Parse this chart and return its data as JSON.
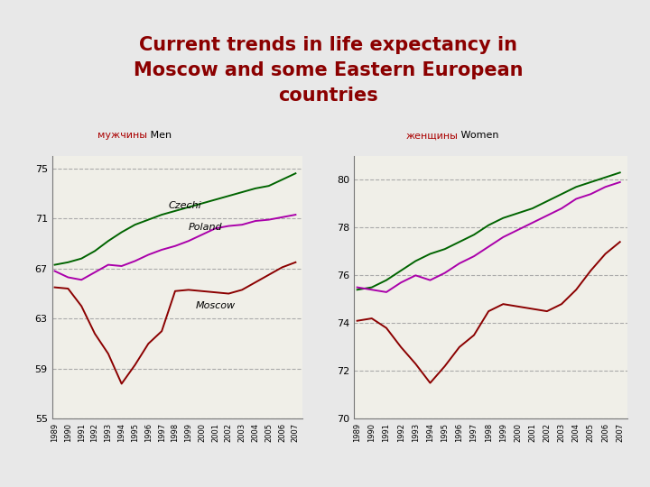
{
  "title_line1": "Current trends in life expectancy in",
  "title_line2": "Moscow and some Eastern European",
  "title_line3": "countries",
  "title_color": "#8B0000",
  "background_color": "#E8E8E8",
  "left_label_ru": "мужчины",
  "left_label_en": " Men",
  "right_label_ru": "женщины",
  "right_label_en": " Women",
  "years": [
    1989,
    1990,
    1991,
    1992,
    1993,
    1994,
    1995,
    1996,
    1997,
    1998,
    1999,
    2000,
    2001,
    2002,
    2003,
    2004,
    2005,
    2006,
    2007
  ],
  "men_czechi": [
    67.3,
    67.5,
    67.8,
    68.4,
    69.2,
    69.9,
    70.5,
    70.9,
    71.3,
    71.6,
    71.9,
    72.2,
    72.5,
    72.8,
    73.1,
    73.4,
    73.6,
    74.1,
    74.6
  ],
  "men_poland": [
    66.8,
    66.3,
    66.1,
    66.7,
    67.3,
    67.2,
    67.6,
    68.1,
    68.5,
    68.8,
    69.2,
    69.7,
    70.2,
    70.4,
    70.5,
    70.8,
    70.9,
    71.1,
    71.3
  ],
  "men_moscow": [
    65.5,
    65.4,
    64.0,
    61.8,
    60.2,
    57.8,
    59.3,
    61.0,
    62.0,
    65.2,
    65.3,
    65.2,
    65.1,
    65.0,
    65.3,
    65.9,
    66.5,
    67.1,
    67.5
  ],
  "women_czechi": [
    75.4,
    75.5,
    75.8,
    76.2,
    76.6,
    76.9,
    77.1,
    77.4,
    77.7,
    78.1,
    78.4,
    78.6,
    78.8,
    79.1,
    79.4,
    79.7,
    79.9,
    80.1,
    80.3
  ],
  "women_poland": [
    75.5,
    75.4,
    75.3,
    75.7,
    76.0,
    75.8,
    76.1,
    76.5,
    76.8,
    77.2,
    77.6,
    77.9,
    78.2,
    78.5,
    78.8,
    79.2,
    79.4,
    79.7,
    79.9
  ],
  "women_moscow": [
    74.1,
    74.2,
    73.8,
    73.0,
    72.3,
    71.5,
    72.2,
    73.0,
    73.5,
    74.5,
    74.8,
    74.7,
    74.6,
    74.5,
    74.8,
    75.4,
    76.2,
    76.9,
    77.4
  ],
  "color_czechi": "#006400",
  "color_poland": "#AA00AA",
  "color_moscow": "#8B0000",
  "men_ylim": [
    55,
    76
  ],
  "men_yticks": [
    55,
    59,
    63,
    67,
    71,
    75
  ],
  "women_ylim": [
    70,
    81
  ],
  "women_yticks": [
    70,
    72,
    74,
    76,
    78,
    80
  ],
  "plot_bg": "#F0EFE8",
  "grid_color": "#AAAAAA",
  "left_border_color": "#8B0000",
  "label_ru_color": "#AA0000",
  "label_en_color": "#000000"
}
